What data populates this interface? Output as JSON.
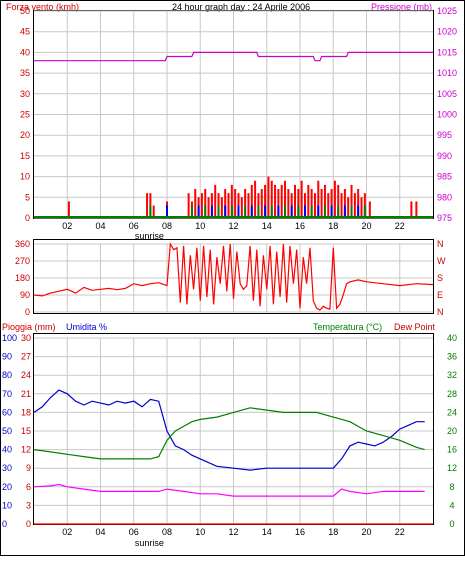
{
  "header": {
    "left_label": "Forza vento (kmh)",
    "title": "24 hour graph day : 24 Aprile 2006",
    "right_label": "Pressione (mb)"
  },
  "panel2": {
    "right_letters": [
      "N",
      "W",
      "S",
      "E",
      "N"
    ]
  },
  "panel3": {
    "left_label_a": "Pioggia (mm)",
    "left_label_b": "Umidita %",
    "right_label_a": "Temperatura (°C)",
    "right_label_b": "Dew Point"
  },
  "sunrise_label": "sunrise",
  "colors": {
    "frame": "#000000",
    "grid": "#c8c8c8",
    "wind": "#ff0000",
    "gust_green": "#008000",
    "gust_blue": "#0000ff",
    "pressure": "#cc00cc",
    "direction": "#ff0000",
    "humidity": "#0000cc",
    "temperature": "#008000",
    "dewpoint": "#ff00ff",
    "rain": "#ff0000",
    "label_red": "#cc0000",
    "label_magenta": "#cc00cc",
    "label_green": "#008000"
  },
  "chart_data": [
    {
      "type": "bar",
      "name_axis_left": "Forza vento (kmh)",
      "name_axis_right": "Pressione (mb)",
      "x_ticks": [
        "02",
        "04",
        "06",
        "08",
        "10",
        "12",
        "14",
        "16",
        "18",
        "20",
        "22"
      ],
      "xlim": [
        0,
        24
      ],
      "ylim_left": [
        0,
        50
      ],
      "y_ticks_left": [
        "0",
        "5",
        "10",
        "15",
        "20",
        "25",
        "30",
        "35",
        "40",
        "45",
        "50"
      ],
      "ylim_right": [
        975,
        1025
      ],
      "y_ticks_right": [
        "975",
        "980",
        "985",
        "990",
        "995",
        "1000",
        "1005",
        "1010",
        "1015",
        "1020",
        "1025"
      ],
      "grid": true,
      "series": [
        {
          "name": "Forza vento (kmh)",
          "color": "#ff0000",
          "x": [
            2.1,
            6.8,
            7.0,
            7.2,
            8.0,
            9.3,
            9.5,
            9.7,
            9.9,
            10.1,
            10.3,
            10.5,
            10.7,
            10.9,
            11.1,
            11.3,
            11.5,
            11.7,
            11.9,
            12.1,
            12.3,
            12.5,
            12.7,
            12.9,
            13.1,
            13.3,
            13.5,
            13.7,
            13.9,
            14.1,
            14.3,
            14.5,
            14.7,
            14.9,
            15.1,
            15.3,
            15.5,
            15.7,
            15.9,
            16.1,
            16.3,
            16.5,
            16.7,
            16.9,
            17.1,
            17.3,
            17.5,
            17.7,
            17.9,
            18.1,
            18.3,
            18.5,
            18.7,
            18.9,
            19.1,
            19.3,
            19.5,
            19.7,
            19.9,
            20.2,
            22.7,
            23.0
          ],
          "values": [
            4,
            6,
            6,
            3,
            4,
            6,
            4,
            7,
            5,
            6,
            7,
            5,
            6,
            8,
            6,
            5,
            7,
            6,
            8,
            7,
            6,
            5,
            7,
            6,
            8,
            9,
            6,
            7,
            8,
            10,
            9,
            8,
            7,
            8,
            9,
            7,
            6,
            8,
            7,
            9,
            6,
            8,
            7,
            6,
            9,
            7,
            8,
            6,
            7,
            9,
            8,
            6,
            7,
            5,
            8,
            6,
            7,
            5,
            6,
            4,
            4,
            4
          ]
        },
        {
          "name": "Pressione (mb)",
          "color": "#cc00cc",
          "x": [
            0,
            7.9,
            8.0,
            9.5,
            9.6,
            13.4,
            13.5,
            16.8,
            16.9,
            17.2,
            17.3,
            18.8,
            18.9,
            24
          ],
          "values": [
            1013,
            1013,
            1014,
            1014,
            1015,
            1015,
            1014,
            1014,
            1013,
            1013,
            1014,
            1014,
            1015,
            1015
          ]
        }
      ]
    },
    {
      "type": "line",
      "name_axis_right": "N W S E N",
      "x_ticks": [
        "02",
        "04",
        "06",
        "08",
        "10",
        "12",
        "14",
        "16",
        "18",
        "20",
        "22"
      ],
      "xlim": [
        0,
        24
      ],
      "ylim": [
        0,
        360
      ],
      "y_ticks": [
        "0",
        "90",
        "180",
        "270",
        "360"
      ],
      "grid": true,
      "series": [
        {
          "name": "Direzione vento",
          "color": "#ff0000",
          "x": [
            0,
            0.5,
            1,
            1.5,
            2,
            2.5,
            3,
            3.5,
            4,
            4.5,
            5,
            5.5,
            6,
            6.5,
            7,
            7.5,
            8,
            8.2,
            8.4,
            8.6,
            8.8,
            9.0,
            9.2,
            9.4,
            9.6,
            9.8,
            10.0,
            10.2,
            10.4,
            10.6,
            10.8,
            11.0,
            11.2,
            11.4,
            11.6,
            11.8,
            12.0,
            12.2,
            12.4,
            12.6,
            12.8,
            13.0,
            13.2,
            13.4,
            13.6,
            13.8,
            14.0,
            14.2,
            14.4,
            14.6,
            14.8,
            15.0,
            15.2,
            15.4,
            15.6,
            15.8,
            16.0,
            16.2,
            16.4,
            16.6,
            16.8,
            17.0,
            17.2,
            17.4,
            17.6,
            17.8,
            18.0,
            18.2,
            18.4,
            18.6,
            18.8,
            19.0,
            19.5,
            20,
            21,
            22,
            23,
            24
          ],
          "values": [
            90,
            85,
            100,
            110,
            120,
            100,
            130,
            115,
            120,
            125,
            118,
            125,
            150,
            140,
            150,
            155,
            140,
            360,
            330,
            340,
            50,
            350,
            40,
            300,
            120,
            340,
            60,
            350,
            80,
            330,
            40,
            290,
            150,
            350,
            110,
            360,
            70,
            320,
            150,
            120,
            140,
            350,
            60,
            330,
            30,
            300,
            120,
            350,
            40,
            320,
            80,
            360,
            50,
            350,
            150,
            330,
            20,
            290,
            150,
            340,
            60,
            20,
            10,
            30,
            20,
            15,
            340,
            20,
            40,
            90,
            150,
            160,
            170,
            160,
            150,
            140,
            150,
            145
          ]
        }
      ]
    },
    {
      "type": "line",
      "name_axis_left_a": "Pioggia (mm)",
      "name_axis_left_b": "Umidita %",
      "name_axis_right": "Temperatura (°C) Dew Point",
      "x_ticks": [
        "02",
        "04",
        "06",
        "08",
        "10",
        "12",
        "14",
        "16",
        "18",
        "20",
        "22"
      ],
      "xlim": [
        0,
        24
      ],
      "ylim_humidity": [
        0,
        100
      ],
      "y_ticks_humidity": [
        "0",
        "10",
        "20",
        "30",
        "40",
        "50",
        "60",
        "70",
        "80",
        "90",
        "100"
      ],
      "ylim_rain": [
        0,
        30
      ],
      "y_ticks_rain": [
        "0",
        "3",
        "6",
        "9",
        "12",
        "15",
        "18",
        "21",
        "24",
        "27",
        "30"
      ],
      "ylim_temp": [
        0,
        40
      ],
      "y_ticks_temp": [
        "0",
        "4",
        "8",
        "12",
        "16",
        "20",
        "24",
        "28",
        "32",
        "36",
        "40"
      ],
      "grid": true,
      "series": [
        {
          "name": "Umidita %",
          "axis": "humidity",
          "color": "#0000cc",
          "x": [
            0,
            0.5,
            1,
            1.5,
            2,
            2.5,
            3,
            3.5,
            4,
            4.5,
            5,
            5.5,
            6,
            6.5,
            7,
            7.5,
            8,
            8.5,
            9,
            9.5,
            10,
            11,
            12,
            13,
            14,
            15,
            16,
            17,
            18,
            18.5,
            19,
            19.5,
            20,
            20.5,
            21,
            21.5,
            22,
            22.5,
            23,
            23.5
          ],
          "values": [
            60,
            63,
            68,
            72,
            70,
            66,
            64,
            66,
            65,
            64,
            66,
            65,
            66,
            63,
            67,
            66,
            50,
            42,
            40,
            37,
            35,
            31,
            30,
            29,
            30,
            30,
            30,
            30,
            30,
            35,
            42,
            44,
            43,
            42,
            44,
            47,
            51,
            53,
            55,
            55
          ]
        },
        {
          "name": "Temperatura (°C)",
          "axis": "temp",
          "color": "#008000",
          "x": [
            0,
            1,
            2,
            3,
            4,
            5,
            6,
            7,
            7.5,
            8,
            8.5,
            9,
            9.5,
            10,
            11,
            12,
            13,
            14,
            15,
            16,
            17,
            18,
            19,
            20,
            21,
            22,
            23,
            23.5
          ],
          "values": [
            16,
            15.5,
            15,
            14.5,
            14,
            14,
            14,
            14,
            14.5,
            18,
            20,
            21,
            22,
            22.5,
            23,
            24,
            25,
            24.5,
            24,
            24,
            24,
            23,
            22,
            20,
            19,
            18,
            16.5,
            16
          ]
        },
        {
          "name": "Dew Point",
          "axis": "temp",
          "color": "#ff00ff",
          "x": [
            0,
            1,
            1.5,
            2,
            3,
            4,
            5,
            6,
            7,
            7.5,
            8,
            9,
            10,
            11,
            12,
            13,
            14,
            15,
            16,
            17,
            18,
            18.5,
            19,
            20,
            21,
            22,
            23,
            23.5
          ],
          "values": [
            8,
            8.2,
            8.5,
            8,
            7.5,
            7,
            7,
            7,
            7,
            7,
            7.5,
            7,
            6.5,
            6.5,
            6,
            6,
            6,
            6,
            6,
            6,
            6,
            7.5,
            7,
            6.5,
            7,
            7,
            7,
            7
          ]
        },
        {
          "name": "Pioggia (mm)",
          "axis": "rain",
          "color": "#ff0000",
          "x": [
            0,
            24
          ],
          "values": [
            0,
            0
          ]
        }
      ]
    }
  ]
}
